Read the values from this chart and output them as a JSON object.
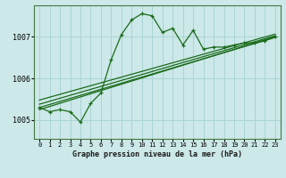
{
  "title": "Graphe pression niveau de la mer (hPa)",
  "bg_color": "#cce8e8",
  "grid_color": "#aad4d4",
  "line_color": "#1a6b1a",
  "spine_color": "#447744",
  "x_ticks": [
    0,
    1,
    2,
    3,
    4,
    5,
    6,
    7,
    8,
    9,
    10,
    11,
    12,
    13,
    14,
    15,
    16,
    17,
    18,
    19,
    20,
    21,
    22,
    23
  ],
  "y_ticks": [
    1005,
    1006,
    1007
  ],
  "ylim": [
    1004.55,
    1007.75
  ],
  "xlim": [
    -0.5,
    23.5
  ],
  "main_series": [
    1005.3,
    1005.2,
    1005.25,
    1005.2,
    1004.95,
    1005.4,
    1005.65,
    1006.45,
    1007.05,
    1007.4,
    1007.55,
    1007.5,
    1007.1,
    1007.2,
    1006.8,
    1007.15,
    1006.7,
    1006.75,
    1006.75,
    1006.8,
    1006.85,
    1006.85,
    1006.9,
    1007.0
  ],
  "trend1_x": [
    0,
    23
  ],
  "trend1_y": [
    1005.25,
    1007.0
  ],
  "trend2_x": [
    0,
    23
  ],
  "trend2_y": [
    1005.3,
    1006.98
  ],
  "trend3_x": [
    0,
    23
  ],
  "trend3_y": [
    1005.38,
    1007.02
  ],
  "trend4_x": [
    0,
    23
  ],
  "trend4_y": [
    1005.48,
    1007.06
  ],
  "title_fontsize": 6.0,
  "tick_fontsize": 5.0,
  "ytick_fontsize": 6.0
}
